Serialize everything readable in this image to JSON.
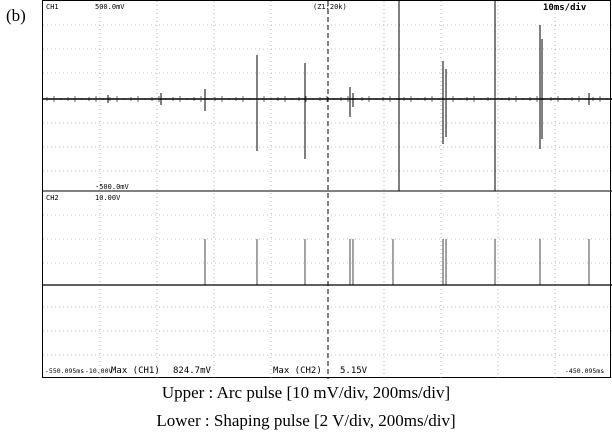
{
  "panel_label": "(b)",
  "scope": {
    "ch1_label": "CH1",
    "ch1_top_scale": "500.0mV",
    "ch1_bottom_scale": "-500.0mV",
    "zoom_label": "(Z1:20k)",
    "timebase": "10ms/div",
    "ch2_label": "CH2",
    "ch2_scale": "10.00V",
    "ch2_bottom_scale": "-10.00V",
    "t_start": "-550.095ms",
    "t_end": "-450.095ms",
    "readout_1_label": "Max (CH1)",
    "readout_1_value": "824.7mV",
    "readout_2_label": "Max (CH2)",
    "readout_2_value": "5.15V"
  },
  "captions": {
    "upper": "Upper : Arc pulse [10 mV/div, 200ms/div]",
    "lower": "Lower : Shaping pulse [2 V/div, 200ms/div]"
  }
}
